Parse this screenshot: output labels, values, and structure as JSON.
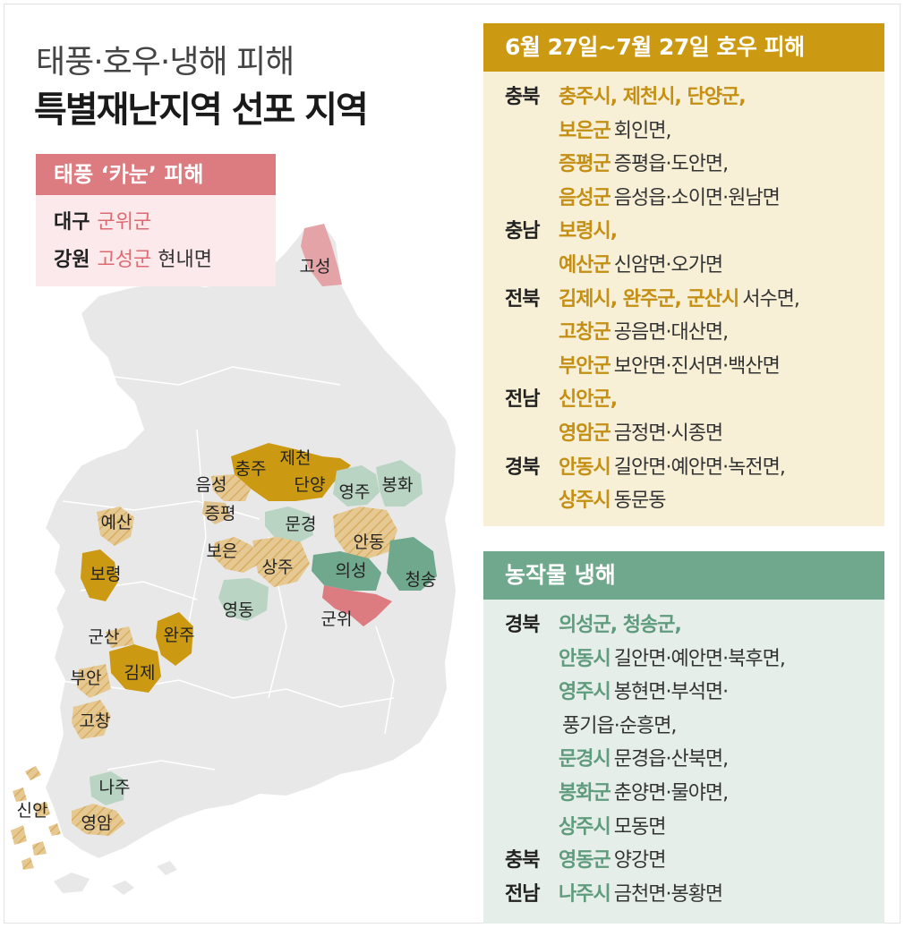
{
  "colors": {
    "rain": "#cc9a12",
    "rain_light": "#e0c28e",
    "frost": "#6fa88c",
    "frost_light": "#b9d4c3",
    "typhoon": "#dc7b80",
    "land": "#e8e8e8"
  },
  "title": {
    "line1": "태풍·호우·냉해 피해",
    "line2": "특별재난지역 선포 지역"
  },
  "typhoon": {
    "header": "태풍 ‘카눈’ 피해",
    "rows": [
      {
        "province": "대구",
        "county": "군위군",
        "detail": ""
      },
      {
        "province": "강원",
        "county": "고성군",
        "detail": "현내면"
      }
    ]
  },
  "rain": {
    "header": "6월 27일~7월 27일 호우 피해",
    "lines": [
      {
        "province": "충북",
        "county": "충주시, 제천시, 단양군,",
        "detail": ""
      },
      {
        "province": "",
        "county": "보은군",
        "detail": "회인면,"
      },
      {
        "province": "",
        "county": "증평군",
        "detail": "증평읍·도안면,"
      },
      {
        "province": "",
        "county": "음성군",
        "detail": "음성읍·소이면·원남면"
      },
      {
        "province": "충남",
        "county": "보령시,",
        "detail": ""
      },
      {
        "province": "",
        "county": "예산군",
        "detail": "신암면·오가면"
      },
      {
        "province": "전북",
        "county": "김제시, 완주군, 군산시",
        "detail": "서수면,"
      },
      {
        "province": "",
        "county": "고창군",
        "detail": "공음면·대산면,"
      },
      {
        "province": "",
        "county": "부안군",
        "detail": "보안면·진서면·백산면"
      },
      {
        "province": "전남",
        "county": "신안군,",
        "detail": ""
      },
      {
        "province": "",
        "county": "영암군",
        "detail": "금정면·시종면"
      },
      {
        "province": "경북",
        "county": "안동시",
        "detail": "길안면·예안면·녹전면,"
      },
      {
        "province": "",
        "county": "상주시",
        "detail": "동문동"
      }
    ]
  },
  "frost": {
    "header": "농작물 냉해",
    "lines": [
      {
        "province": "경북",
        "county": "의성군, 청송군,",
        "detail": ""
      },
      {
        "province": "",
        "county": "안동시",
        "detail": "길안면·예안면·북후면,"
      },
      {
        "province": "",
        "county": "영주시",
        "detail": "봉현면·부석면·"
      },
      {
        "province": "",
        "county": "",
        "detail": "풍기읍·순흥면,"
      },
      {
        "province": "",
        "county": "문경시",
        "detail": "문경읍·산북면,"
      },
      {
        "province": "",
        "county": "봉화군",
        "detail": "춘양면·물야면,"
      },
      {
        "province": "",
        "county": "상주시",
        "detail": "모동면"
      },
      {
        "province": "충북",
        "county": "영동군",
        "detail": "양강면"
      },
      {
        "province": "전남",
        "county": "나주시",
        "detail": "금천면·봉황면"
      }
    ]
  },
  "map_labels": [
    "고성",
    "충주",
    "제천",
    "음성",
    "단양",
    "영주",
    "봉화",
    "증평",
    "문경",
    "예산",
    "보은",
    "안동",
    "상주",
    "의성",
    "청송",
    "보령",
    "영동",
    "군위",
    "군산",
    "완주",
    "부안",
    "김제",
    "고창",
    "나주",
    "신안",
    "영암"
  ]
}
